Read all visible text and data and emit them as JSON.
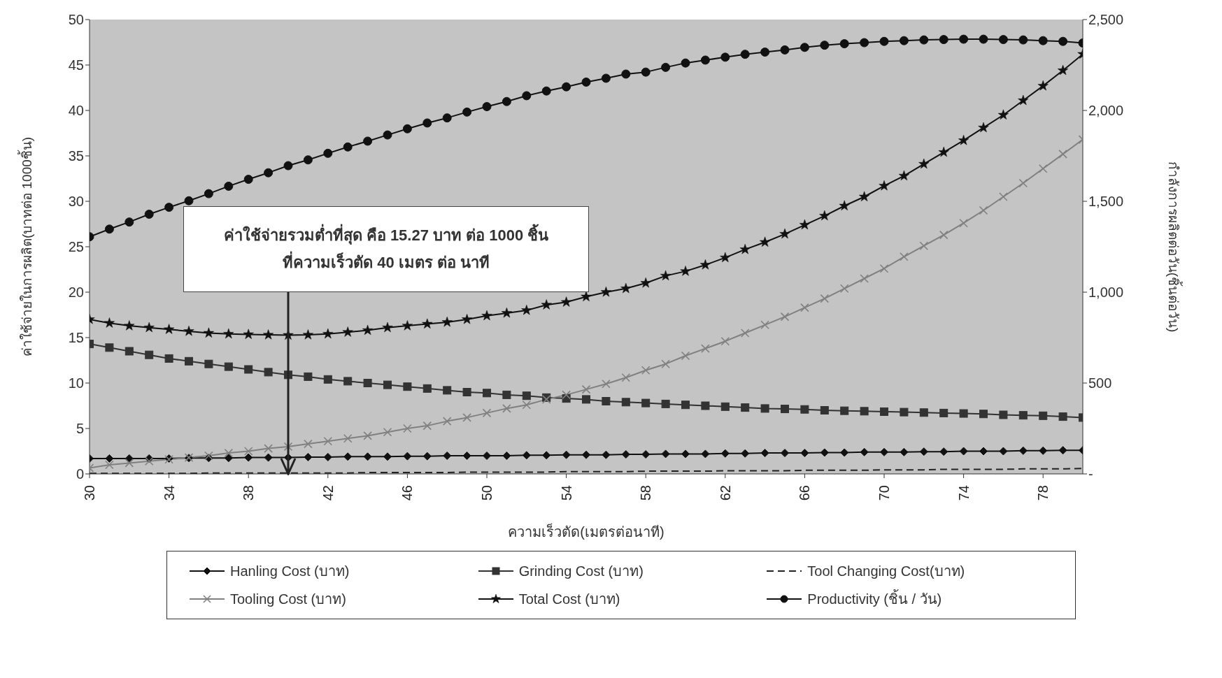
{
  "chart_data": {
    "type": "line",
    "xlabel": "ความเร็วตัด(เมตรต่อนาที)",
    "ylabel": "ค่าใช้จ่ายในการผลิต(บาทต่อ 1000ชิ้น)",
    "y2label": "กำลังการผลิตต่อวัน(ชิ้นต่อวัน)",
    "x": [
      30,
      31,
      32,
      33,
      34,
      35,
      36,
      37,
      38,
      39,
      40,
      41,
      42,
      43,
      44,
      45,
      46,
      47,
      48,
      49,
      50,
      51,
      52,
      53,
      54,
      55,
      56,
      57,
      58,
      59,
      60,
      61,
      62,
      63,
      64,
      65,
      66,
      67,
      68,
      69,
      70,
      71,
      72,
      73,
      74,
      75,
      76,
      77,
      78,
      79,
      80
    ],
    "xlim": [
      30,
      80
    ],
    "xticks": [
      30,
      34,
      38,
      42,
      46,
      50,
      54,
      58,
      62,
      66,
      70,
      74,
      78
    ],
    "ylim": [
      0,
      50
    ],
    "yticks": [
      0,
      5,
      10,
      15,
      20,
      25,
      30,
      35,
      40,
      45,
      50
    ],
    "y2lim": [
      0,
      2500
    ],
    "y2ticks": [
      {
        "value": 0,
        "label": "-"
      },
      500,
      {
        "value": 1000,
        "label": "1,000"
      },
      {
        "value": 1500,
        "label": "1,500"
      },
      {
        "value": 2000,
        "label": "2,000"
      },
      {
        "value": 2500,
        "label": "2,500"
      }
    ],
    "legend": "bottom",
    "series": [
      {
        "name": "Hanling Cost (บาท)",
        "color": "#111111",
        "marker": "diamond",
        "values": [
          1.7,
          1.7,
          1.7,
          1.7,
          1.7,
          1.75,
          1.75,
          1.75,
          1.8,
          1.8,
          1.8,
          1.85,
          1.85,
          1.9,
          1.9,
          1.9,
          1.95,
          1.95,
          2.0,
          2.0,
          2.0,
          2.0,
          2.05,
          2.05,
          2.1,
          2.1,
          2.1,
          2.15,
          2.15,
          2.2,
          2.2,
          2.2,
          2.25,
          2.25,
          2.3,
          2.3,
          2.3,
          2.35,
          2.35,
          2.4,
          2.4,
          2.4,
          2.45,
          2.45,
          2.5,
          2.5,
          2.5,
          2.55,
          2.55,
          2.6,
          2.6
        ]
      },
      {
        "name": "Grinding Cost (บาท)",
        "color": "#333333",
        "marker": "square",
        "values": [
          14.3,
          13.9,
          13.5,
          13.1,
          12.7,
          12.4,
          12.1,
          11.8,
          11.5,
          11.2,
          10.9,
          10.7,
          10.4,
          10.2,
          10.0,
          9.8,
          9.6,
          9.4,
          9.2,
          9.0,
          8.9,
          8.7,
          8.6,
          8.4,
          8.3,
          8.2,
          8.0,
          7.9,
          7.8,
          7.7,
          7.6,
          7.5,
          7.4,
          7.3,
          7.2,
          7.15,
          7.1,
          7.0,
          6.95,
          6.9,
          6.85,
          6.8,
          6.75,
          6.7,
          6.65,
          6.6,
          6.5,
          6.45,
          6.4,
          6.3,
          6.2
        ]
      },
      {
        "name": "Tool Changing  Cost(บาท)",
        "color": "#222222",
        "marker": "none",
        "line_style": "dashed",
        "values": [
          0.05,
          0.05,
          0.05,
          0.05,
          0.05,
          0.05,
          0.1,
          0.1,
          0.1,
          0.1,
          0.1,
          0.1,
          0.1,
          0.1,
          0.15,
          0.15,
          0.15,
          0.15,
          0.15,
          0.2,
          0.2,
          0.2,
          0.2,
          0.2,
          0.25,
          0.25,
          0.25,
          0.25,
          0.3,
          0.3,
          0.3,
          0.3,
          0.35,
          0.35,
          0.35,
          0.35,
          0.4,
          0.4,
          0.4,
          0.4,
          0.45,
          0.45,
          0.45,
          0.5,
          0.5,
          0.5,
          0.5,
          0.55,
          0.55,
          0.55,
          0.6
        ]
      },
      {
        "name": "Tooling Cost (บาท)",
        "color": "#808080",
        "marker": "cross",
        "values": [
          0.65,
          1.0,
          1.2,
          1.4,
          1.6,
          1.8,
          2.0,
          2.3,
          2.5,
          2.8,
          3.0,
          3.3,
          3.6,
          3.9,
          4.2,
          4.6,
          5.0,
          5.3,
          5.8,
          6.2,
          6.7,
          7.2,
          7.6,
          8.2,
          8.7,
          9.3,
          9.9,
          10.6,
          11.4,
          12.1,
          13.0,
          13.8,
          14.6,
          15.5,
          16.4,
          17.3,
          18.3,
          19.3,
          20.4,
          21.5,
          22.6,
          23.9,
          25.1,
          26.3,
          27.6,
          29.0,
          30.5,
          32.0,
          33.6,
          35.2,
          36.8
        ]
      },
      {
        "name": "Total Cost (บาท)",
        "color": "#111111",
        "marker": "star",
        "values": [
          17.0,
          16.6,
          16.3,
          16.1,
          15.9,
          15.7,
          15.5,
          15.4,
          15.35,
          15.3,
          15.27,
          15.3,
          15.4,
          15.6,
          15.8,
          16.1,
          16.3,
          16.5,
          16.7,
          17.0,
          17.4,
          17.7,
          18.0,
          18.6,
          18.9,
          19.5,
          20.0,
          20.4,
          21.0,
          21.8,
          22.3,
          23.0,
          23.8,
          24.7,
          25.5,
          26.4,
          27.4,
          28.4,
          29.5,
          30.5,
          31.7,
          32.8,
          34.1,
          35.4,
          36.7,
          38.1,
          39.5,
          41.1,
          42.7,
          44.4,
          46.2
        ]
      },
      {
        "name": "Productivity (ชิ้น / วัน)",
        "color": "#111111",
        "marker": "circle",
        "axis": "y2",
        "values": [
          1305,
          1347,
          1386,
          1429,
          1467,
          1503,
          1542,
          1583,
          1621,
          1657,
          1696,
          1728,
          1764,
          1799,
          1831,
          1865,
          1899,
          1931,
          1959,
          1991,
          2021,
          2049,
          2081,
          2107,
          2130,
          2156,
          2177,
          2200,
          2211,
          2237,
          2261,
          2277,
          2293,
          2309,
          2321,
          2333,
          2347,
          2359,
          2367,
          2373,
          2380,
          2384,
          2388,
          2390,
          2392,
          2392,
          2390,
          2388,
          2384,
          2380,
          2371
        ]
      }
    ],
    "annotations": [
      "ค่าใช้จ่ายรวมต่ำที่สุด คือ 15.27 บาท ต่อ 1000 ชิ้น\nที่ความเร็วตัด 40 เมตร ต่อ นาที"
    ]
  }
}
